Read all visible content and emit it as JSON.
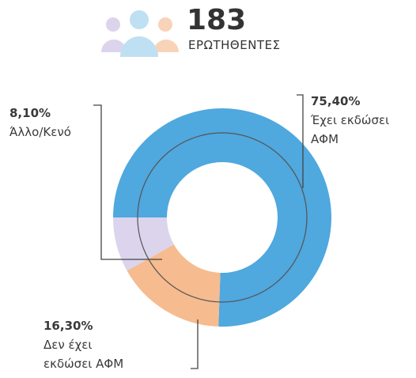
{
  "header": {
    "count": "183",
    "label": "ΕΡΩΤΗΘΕΝΤΕΣ"
  },
  "chart_data": {
    "type": "pie",
    "categories": [
      "Έχει εκδώσει ΑΦΜ",
      "Δεν έχει εκδώσει ΑΦΜ",
      "Άλλο/Κενό"
    ],
    "values": [
      75.4,
      16.3,
      8.1
    ],
    "value_labels": [
      "75,40%",
      "16,30%",
      "8,10%"
    ],
    "colors": [
      "#4fa8de",
      "#f6bb8f",
      "#dbd4ec"
    ]
  }
}
